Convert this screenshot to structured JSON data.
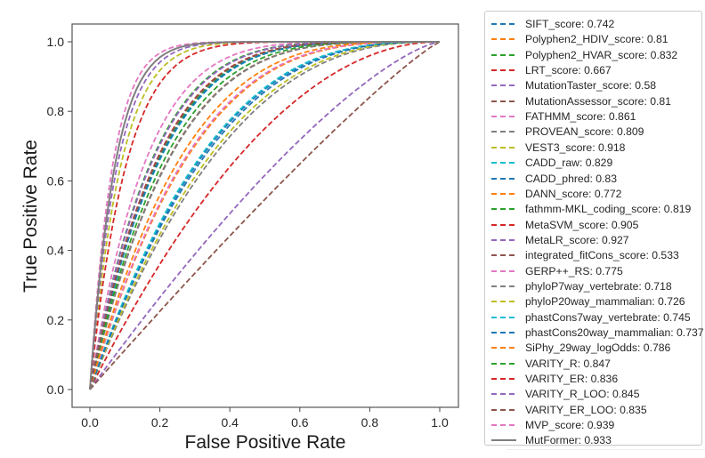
{
  "chart_data": {
    "type": "line",
    "title": "",
    "xlabel": "False Positive Rate",
    "ylabel": "True Positive Rate",
    "xlim": [
      -0.05,
      1.05
    ],
    "ylim": [
      -0.05,
      1.05
    ],
    "xticks": [
      "0.0",
      "0.2",
      "0.4",
      "0.6",
      "0.8",
      "1.0"
    ],
    "yticks": [
      "0.0",
      "0.2",
      "0.4",
      "0.6",
      "0.8",
      "1.0"
    ],
    "xtick_values": [
      0,
      0.2,
      0.4,
      0.6,
      0.8,
      1.0
    ],
    "ytick_values": [
      0,
      0.2,
      0.4,
      0.6,
      0.8,
      1.0
    ],
    "grid": false,
    "legend_position": "outside-right",
    "series": [
      {
        "name": "SIFT_score",
        "auc": 0.742,
        "label": "SIFT_score: 0.742",
        "color": "#1f77b4",
        "style": "dashed"
      },
      {
        "name": "Polyphen2_HDIV_score",
        "auc": 0.81,
        "label": "Polyphen2_HDIV_score: 0.81",
        "color": "#ff7f0e",
        "style": "dashed"
      },
      {
        "name": "Polyphen2_HVAR_score",
        "auc": 0.832,
        "label": "Polyphen2_HVAR_score: 0.832",
        "color": "#2ca02c",
        "style": "dashed"
      },
      {
        "name": "LRT_score",
        "auc": 0.667,
        "label": "LRT_score: 0.667",
        "color": "#d62728",
        "style": "dashed"
      },
      {
        "name": "MutationTaster_score",
        "auc": 0.58,
        "label": "MutationTaster_score: 0.58",
        "color": "#9467bd",
        "style": "dashed"
      },
      {
        "name": "MutationAssessor_score",
        "auc": 0.81,
        "label": "MutationAssessor_score: 0.81",
        "color": "#8c564b",
        "style": "dashed"
      },
      {
        "name": "FATHMM_score",
        "auc": 0.861,
        "label": "FATHMM_score: 0.861",
        "color": "#e377c2",
        "style": "dashed"
      },
      {
        "name": "PROVEAN_score",
        "auc": 0.809,
        "label": "PROVEAN_score: 0.809",
        "color": "#7f7f7f",
        "style": "dashed"
      },
      {
        "name": "VEST3_score",
        "auc": 0.918,
        "label": "VEST3_score: 0.918",
        "color": "#bcbd22",
        "style": "dashed"
      },
      {
        "name": "CADD_raw",
        "auc": 0.829,
        "label": "CADD_raw: 0.829",
        "color": "#17becf",
        "style": "dashed"
      },
      {
        "name": "CADD_phred",
        "auc": 0.83,
        "label": "CADD_phred: 0.83",
        "color": "#1f77b4",
        "style": "dashed"
      },
      {
        "name": "DANN_score",
        "auc": 0.772,
        "label": "DANN_score: 0.772",
        "color": "#ff7f0e",
        "style": "dashed"
      },
      {
        "name": "fathmm-MKL_coding_score",
        "auc": 0.819,
        "label": "fathmm-MKL_coding_score: 0.819",
        "color": "#2ca02c",
        "style": "dashed"
      },
      {
        "name": "MetaSVM_score",
        "auc": 0.905,
        "label": "MetaSVM_score: 0.905",
        "color": "#d62728",
        "style": "dashed"
      },
      {
        "name": "MetaLR_score",
        "auc": 0.927,
        "label": "MetaLR_score: 0.927",
        "color": "#9467bd",
        "style": "dashed"
      },
      {
        "name": "integrated_fitCons_score",
        "auc": 0.533,
        "label": "integrated_fitCons_score: 0.533",
        "color": "#8c564b",
        "style": "dashed"
      },
      {
        "name": "GERP++_RS",
        "auc": 0.775,
        "label": "GERP++_RS: 0.775",
        "color": "#e377c2",
        "style": "dashed"
      },
      {
        "name": "phyloP7way_vertebrate",
        "auc": 0.718,
        "label": "phyloP7way_vertebrate: 0.718",
        "color": "#7f7f7f",
        "style": "dashed"
      },
      {
        "name": "phyloP20way_mammalian",
        "auc": 0.726,
        "label": "phyloP20way_mammalian: 0.726",
        "color": "#bcbd22",
        "style": "dashed"
      },
      {
        "name": "phastCons7way_vertebrate",
        "auc": 0.745,
        "label": "phastCons7way_vertebrate: 0.745",
        "color": "#17becf",
        "style": "dashed"
      },
      {
        "name": "phastCons20way_mammalian",
        "auc": 0.737,
        "label": "phastCons20way_mammalian: 0.737",
        "color": "#1f77b4",
        "style": "dashed"
      },
      {
        "name": "SiPhy_29way_logOdds",
        "auc": 0.786,
        "label": "SiPhy_29way_logOdds: 0.786",
        "color": "#ff7f0e",
        "style": "dashed"
      },
      {
        "name": "VARITY_R",
        "auc": 0.847,
        "label": "VARITY_R: 0.847",
        "color": "#2ca02c",
        "style": "dashed"
      },
      {
        "name": "VARITY_ER",
        "auc": 0.836,
        "label": "VARITY_ER: 0.836",
        "color": "#d62728",
        "style": "dashed"
      },
      {
        "name": "VARITY_R_LOO",
        "auc": 0.845,
        "label": "VARITY_R_LOO: 0.845",
        "color": "#9467bd",
        "style": "dashed"
      },
      {
        "name": "VARITY_ER_LOO",
        "auc": 0.835,
        "label": "VARITY_ER_LOO: 0.835",
        "color": "#8c564b",
        "style": "dashed"
      },
      {
        "name": "MVP_score",
        "auc": 0.939,
        "label": "MVP_score: 0.939",
        "color": "#e377c2",
        "style": "dashed"
      },
      {
        "name": "MutFormer",
        "auc": 0.933,
        "label": "MutFormer: 0.933",
        "color": "#7f7f7f",
        "style": "solid"
      }
    ]
  }
}
